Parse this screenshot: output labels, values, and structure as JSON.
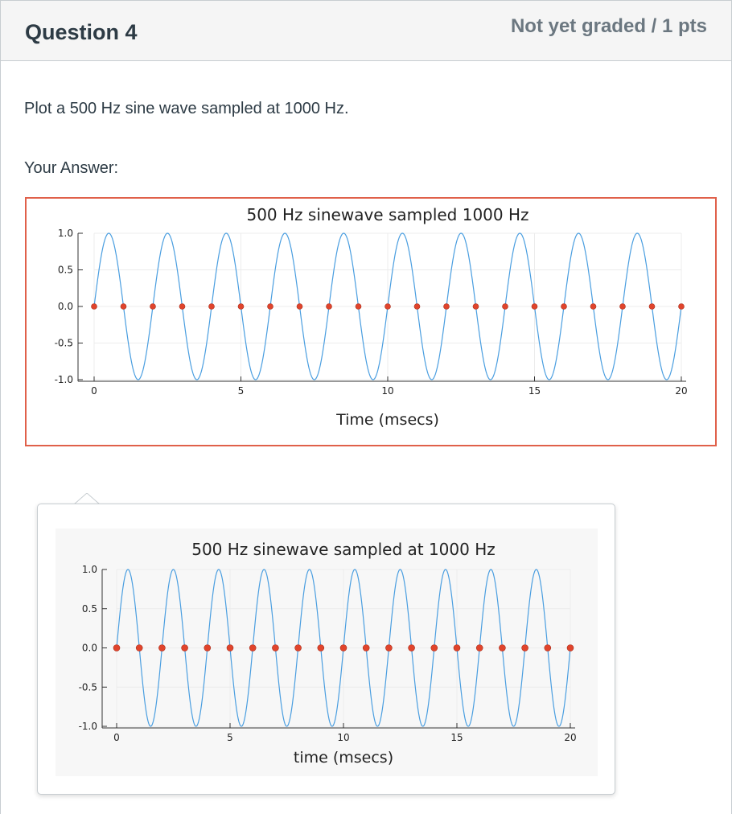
{
  "question": {
    "title": "Question 4",
    "score": "Not yet graded / 1 pts",
    "text": "Plot a 500 Hz sine wave sampled at 1000 Hz.",
    "answer_label": "Your Answer:"
  },
  "colors": {
    "curve": "#4a9ee0",
    "samples": "#e0442c",
    "answer_border": "#e0604a"
  },
  "chart_data": [
    {
      "type": "line",
      "title": "500 Hz sinewave sampled 1000 Hz",
      "xlabel": "Time (msecs)",
      "ylabel": "",
      "xlim": [
        0,
        20
      ],
      "ylim": [
        -1.0,
        1.0
      ],
      "xticks": [
        "0",
        "5",
        "10",
        "15",
        "20"
      ],
      "yticks": [
        "1.0",
        "0.5",
        "0.0",
        "-0.5",
        "-1.0"
      ],
      "grid": true,
      "series": [
        {
          "kind": "curve",
          "function": "sin(2*pi*0.5*t)",
          "periods_ms": 2
        },
        {
          "kind": "scatter",
          "x": [
            0,
            1,
            2,
            3,
            4,
            5,
            6,
            7,
            8,
            9,
            10,
            11,
            12,
            13,
            14,
            15,
            16,
            17,
            18,
            19,
            20
          ],
          "values": [
            0,
            0,
            0,
            0,
            0,
            0,
            0,
            0,
            0,
            0,
            0,
            0,
            0,
            0,
            0,
            0,
            0,
            0,
            0,
            0,
            0
          ]
        }
      ]
    },
    {
      "type": "line",
      "title": "500 Hz sinewave sampled at 1000 Hz",
      "xlabel": "time (msecs)",
      "ylabel": "",
      "xlim": [
        0,
        20
      ],
      "ylim": [
        -1.0,
        1.0
      ],
      "xticks": [
        "0",
        "5",
        "10",
        "15",
        "20"
      ],
      "yticks": [
        "1.0",
        "0.5",
        "0.0",
        "-0.5",
        "-1.0"
      ],
      "grid": true,
      "series": [
        {
          "kind": "curve",
          "function": "sin(2*pi*0.5*t)",
          "periods_ms": 2
        },
        {
          "kind": "scatter",
          "x": [
            0,
            1,
            2,
            3,
            4,
            5,
            6,
            7,
            8,
            9,
            10,
            11,
            12,
            13,
            14,
            15,
            16,
            17,
            18,
            19,
            20
          ],
          "values": [
            0,
            0,
            0,
            0,
            0,
            0,
            0,
            0,
            0,
            0,
            0,
            0,
            0,
            0,
            0,
            0,
            0,
            0,
            0,
            0,
            0
          ]
        }
      ]
    }
  ]
}
